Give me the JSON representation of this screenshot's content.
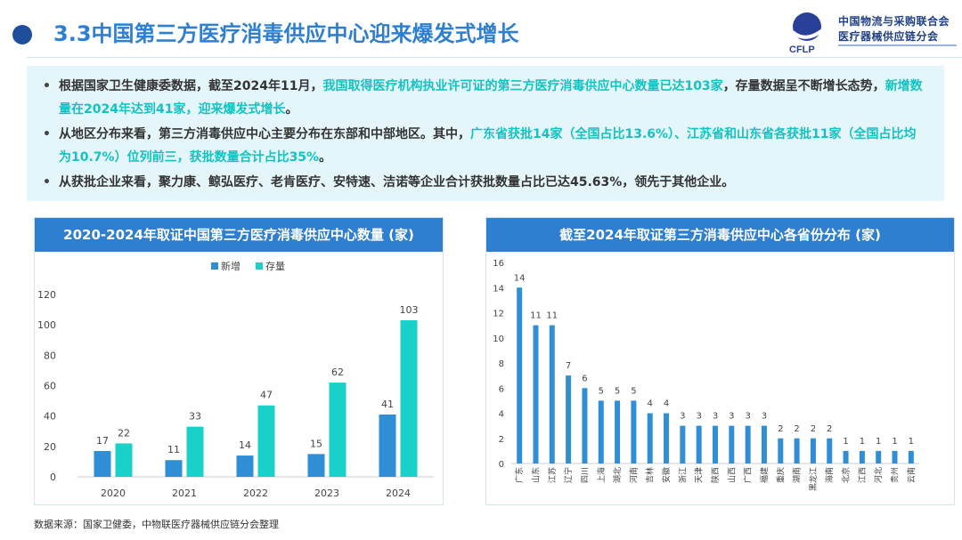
{
  "header": {
    "title": "3.3中国第三方医疗消毒供应中心迎来爆发式增长",
    "logo_line1": "中国物流与采购联合会",
    "logo_line2": "医疗器械供应链分会",
    "logo_abbr": "CFLP"
  },
  "summary": {
    "bullets": [
      {
        "parts": [
          {
            "text": "根据国家卫生健康委数据，截至2024年11月，",
            "hl": false
          },
          {
            "text": "我国取得医疗机构执业许可证的第三方医疗消毒供应中心数量已达103家",
            "hl": true
          },
          {
            "text": "，存量数据呈不断增长态势，",
            "hl": false
          },
          {
            "text": "新增数量在2024年达到41家，迎来爆发式增长",
            "hl": true
          },
          {
            "text": "。",
            "hl": false
          }
        ]
      },
      {
        "parts": [
          {
            "text": "从地区分布来看，第三方消毒供应中心主要分布在东部和中部地区。其中，",
            "hl": false
          },
          {
            "text": "广东省获批14家（全国占比13.6%）、江苏省和山东省各获批11家（全国占比均为10.7%）位列前三，获批数量合计占比35%",
            "hl": true
          },
          {
            "text": "。",
            "hl": false
          }
        ]
      },
      {
        "parts": [
          {
            "text": "从获批企业来看，聚力康、鲸弘医疗、老肯医疗、安特速、洁诺等企业合计获批数量占比已达45.63%，领先于其他企业。",
            "hl": false
          }
        ]
      }
    ]
  },
  "chart_data": [
    {
      "type": "bar",
      "title": "2020-2024年取证中国第三方医疗消毒供应中心数量 (家)",
      "categories": [
        "2020",
        "2021",
        "2022",
        "2023",
        "2024"
      ],
      "series": [
        {
          "name": "新增",
          "values": [
            17,
            11,
            14,
            15,
            41
          ],
          "color": "#2f8ed4"
        },
        {
          "name": "存量",
          "values": [
            22,
            33,
            47,
            62,
            103
          ],
          "color": "#19d1c8"
        }
      ],
      "ylim": [
        0,
        120
      ],
      "yticks": [
        0,
        20,
        40,
        60,
        80,
        100,
        120
      ],
      "legend": "top-center",
      "grid": false
    },
    {
      "type": "bar",
      "title": "截至2024年取证第三方消毒供应中心各省份分布 (家)",
      "categories": [
        "广东",
        "山东",
        "江苏",
        "辽宁",
        "四川",
        "上海",
        "湖北",
        "河南",
        "吉林",
        "安徽",
        "浙江",
        "天津",
        "陕西",
        "山西",
        "广西",
        "福建",
        "重庆",
        "湖南",
        "黑龙江",
        "海南",
        "北京",
        "江西",
        "河北",
        "贵州",
        "云南"
      ],
      "values": [
        14,
        11,
        11,
        7,
        6,
        5,
        5,
        5,
        4,
        4,
        3,
        3,
        3,
        3,
        3,
        3,
        2,
        2,
        2,
        2,
        1,
        1,
        1,
        1,
        1
      ],
      "color": "#2f8ed4",
      "ylim": [
        0,
        16
      ],
      "yticks": [
        0,
        2,
        4,
        6,
        8,
        10,
        12,
        14,
        16
      ],
      "grid": false
    }
  ],
  "footer": {
    "source": "数据来源：国家卫健委，中物联医疗器械供应链分会整理"
  }
}
